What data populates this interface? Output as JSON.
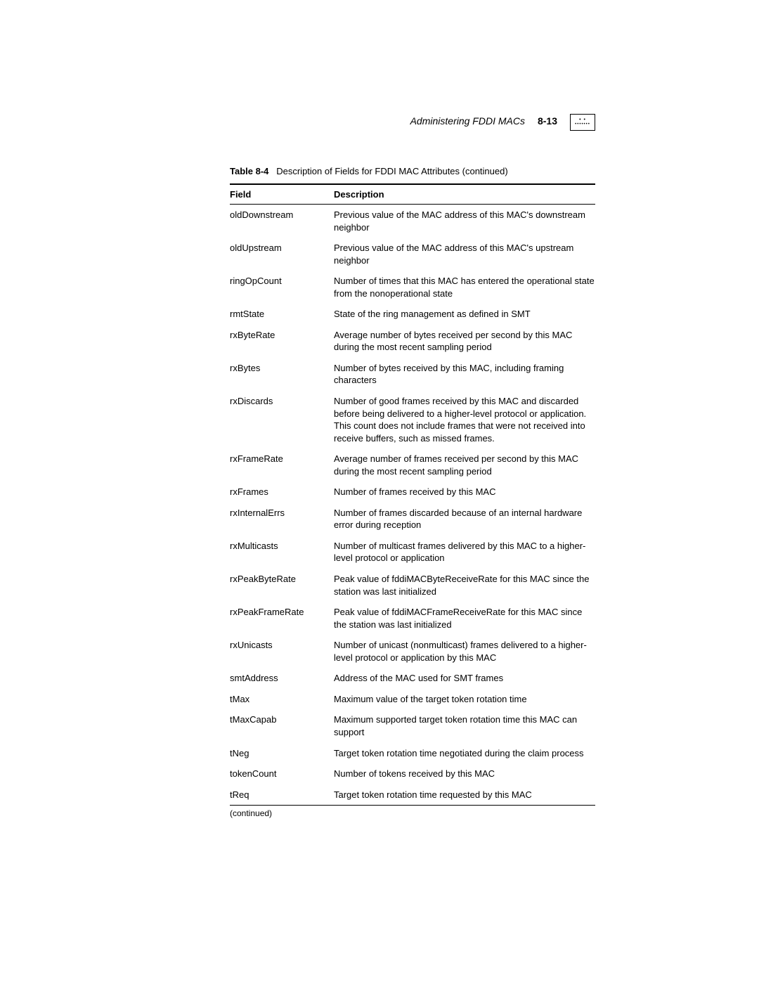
{
  "header": {
    "section_title": "Administering FDDI MACs",
    "page_number": "8-13"
  },
  "table": {
    "label": "Table 8-4",
    "caption": "Description of Fields for FDDI MAC Attributes (continued)",
    "columns": [
      "Field",
      "Description"
    ],
    "rows": [
      {
        "field": "oldDownstream",
        "description": "Previous value of the MAC address of this MAC's downstream neighbor"
      },
      {
        "field": "oldUpstream",
        "description": "Previous value of the MAC address of this MAC's upstream neighbor"
      },
      {
        "field": "ringOpCount",
        "description": "Number of times that this MAC has entered the operational state from the nonoperational state"
      },
      {
        "field": "rmtState",
        "description": "State of the ring management as defined in SMT"
      },
      {
        "field": "rxByteRate",
        "description": "Average number of bytes received per second by this MAC during the most recent sampling period"
      },
      {
        "field": "rxBytes",
        "description": "Number of bytes received by this MAC, including framing characters"
      },
      {
        "field": "rxDiscards",
        "description": "Number of good frames received by this MAC and discarded before being delivered to a higher-level protocol or application. This count does not include frames that were not received into receive buffers, such as missed frames."
      },
      {
        "field": "rxFrameRate",
        "description": "Average number of frames received per second by this MAC during the most recent sampling period"
      },
      {
        "field": "rxFrames",
        "description": "Number of frames received by this MAC"
      },
      {
        "field": "rxInternalErrs",
        "description": "Number of frames discarded because of an internal hardware error during reception"
      },
      {
        "field": "rxMulticasts",
        "description": "Number of multicast frames delivered by this MAC to a higher-level protocol or application"
      },
      {
        "field": "rxPeakByteRate",
        "description": "Peak value of fddiMACByteReceiveRate for this MAC since the station was last initialized"
      },
      {
        "field": "rxPeakFrameRate",
        "description": "Peak value of fddiMACFrameReceiveRate for this MAC since the station was last initialized"
      },
      {
        "field": "rxUnicasts",
        "description": "Number of unicast (nonmulticast) frames delivered to a higher-level protocol or application by this MAC"
      },
      {
        "field": "smtAddress",
        "description": "Address of the MAC used for SMT frames"
      },
      {
        "field": "tMax",
        "description": "Maximum value of the target token rotation time"
      },
      {
        "field": "tMaxCapab",
        "description": "Maximum supported target token rotation time this MAC can support"
      },
      {
        "field": "tNeg",
        "description": "Target token rotation time negotiated during the claim process"
      },
      {
        "field": "tokenCount",
        "description": "Number of tokens received by this MAC"
      },
      {
        "field": "tReq",
        "description": "Target token rotation time requested by this MAC"
      }
    ],
    "continued_note": "(continued)"
  }
}
